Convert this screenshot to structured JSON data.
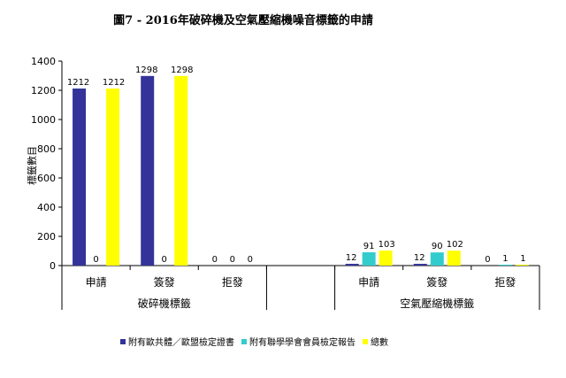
{
  "chart_data": {
    "type": "bar",
    "title": "圖7 - 2016年破碎機及空氣壓縮機噪音標籤的申請",
    "ylabel": "標籤數目",
    "xlabel": "",
    "ylim": [
      0,
      1400
    ],
    "yticks": [
      0,
      200,
      400,
      600,
      800,
      1000,
      1200,
      1400
    ],
    "grid": false,
    "legend_position": "bottom",
    "groups": [
      {
        "name": "破碎機標籤",
        "categories": [
          "申請",
          "簽發",
          "拒發"
        ]
      },
      {
        "name": "空氣壓縮機標籤",
        "categories": [
          "申請",
          "簽發",
          "拒發"
        ]
      }
    ],
    "series": [
      {
        "name": "附有歐共體／歐盟檢定證書",
        "color": "#333399",
        "values": [
          1212,
          1298,
          0,
          12,
          12,
          0
        ]
      },
      {
        "name": "附有聯學學會會員檢定報告",
        "color": "#33CCCC",
        "values": [
          0,
          0,
          0,
          91,
          90,
          1
        ]
      },
      {
        "name": "總數",
        "color": "#FFFF00",
        "values": [
          1212,
          1298,
          0,
          103,
          102,
          1
        ]
      }
    ]
  }
}
